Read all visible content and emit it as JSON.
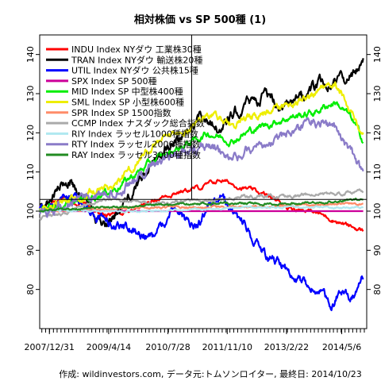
{
  "chart_data": {
    "type": "line",
    "title": "相対株価 vs SP 500種 (1)",
    "caption": "作成: wildinvestors.com, データ元:トムソンロイター, 最終日: 2014/10/23",
    "xlim": [
      "2007-10-15",
      "2014-11-20"
    ],
    "ylim": [
      70,
      145
    ],
    "x_ticks": [
      {
        "date": "2007-12-31",
        "label": "2007/12/31"
      },
      {
        "date": "2009-04-14",
        "label": "2009/4/14"
      },
      {
        "date": "2010-07-28",
        "label": "2010/7/28"
      },
      {
        "date": "2011-11-10",
        "label": "2011/11/10"
      },
      {
        "date": "2013-02-22",
        "label": "2013/2/22"
      },
      {
        "date": "2014-05-06",
        "label": "2014/5/6"
      }
    ],
    "y_ticks": [
      80,
      90,
      100,
      110,
      120,
      130,
      140
    ],
    "grid": false,
    "legend_position": "top-left",
    "reference_lines": {
      "horizontal": 103,
      "vertical": "2011-02-01"
    },
    "series": [
      {
        "name": "INDU Index NYダウ 工業株30種",
        "color": "#ff0000",
        "points": [
          [
            "2007-10-15",
            101
          ],
          [
            "2008-04-15",
            103
          ],
          [
            "2008-10-15",
            102
          ],
          [
            "2009-03-15",
            99
          ],
          [
            "2009-09-15",
            100
          ],
          [
            "2010-04-15",
            103
          ],
          [
            "2010-10-15",
            105
          ],
          [
            "2011-04-15",
            106
          ],
          [
            "2011-09-15",
            108
          ],
          [
            "2012-03-15",
            106
          ],
          [
            "2012-09-15",
            104
          ],
          [
            "2013-03-15",
            101
          ],
          [
            "2013-09-15",
            100
          ],
          [
            "2014-02-15",
            98
          ],
          [
            "2014-07-15",
            96
          ],
          [
            "2014-10-23",
            95
          ]
        ]
      },
      {
        "name": "TRAN Index NYダウ 輸送株20種",
        "color": "#000000",
        "points": [
          [
            "2007-10-15",
            101
          ],
          [
            "2008-06-15",
            108
          ],
          [
            "2008-12-15",
            100
          ],
          [
            "2009-03-15",
            96
          ],
          [
            "2009-10-15",
            104
          ],
          [
            "2010-04-15",
            115
          ],
          [
            "2010-10-15",
            118
          ],
          [
            "2011-04-15",
            125
          ],
          [
            "2011-09-15",
            121
          ],
          [
            "2012-03-15",
            127
          ],
          [
            "2012-09-15",
            130
          ],
          [
            "2013-03-15",
            126
          ],
          [
            "2013-10-15",
            132
          ],
          [
            "2014-04-15",
            133
          ],
          [
            "2014-08-15",
            135
          ],
          [
            "2014-10-23",
            140
          ]
        ]
      },
      {
        "name": "UTIL Index NYダウ 公共株15種",
        "color": "#0000ff",
        "points": [
          [
            "2007-10-15",
            100
          ],
          [
            "2008-04-15",
            104
          ],
          [
            "2008-10-15",
            101
          ],
          [
            "2009-03-15",
            97
          ],
          [
            "2009-10-15",
            95
          ],
          [
            "2010-04-15",
            93
          ],
          [
            "2010-09-15",
            102
          ],
          [
            "2011-02-15",
            95
          ],
          [
            "2011-09-15",
            104
          ],
          [
            "2012-03-15",
            97
          ],
          [
            "2012-08-15",
            90
          ],
          [
            "2013-01-15",
            86
          ],
          [
            "2013-06-15",
            82
          ],
          [
            "2013-11-15",
            79
          ],
          [
            "2014-02-15",
            76
          ],
          [
            "2014-05-15",
            80
          ],
          [
            "2014-08-15",
            78
          ],
          [
            "2014-10-23",
            83
          ]
        ]
      },
      {
        "name": "SPX Index SP 500種",
        "color": "#cc0099",
        "points": [
          [
            "2007-10-15",
            100
          ],
          [
            "2014-10-23",
            100
          ]
        ]
      },
      {
        "name": "MID Index SP 中型株400種",
        "color": "#00ee00",
        "points": [
          [
            "2007-10-15",
            100
          ],
          [
            "2008-10-15",
            103
          ],
          [
            "2009-06-15",
            106
          ],
          [
            "2010-04-15",
            113
          ],
          [
            "2010-10-15",
            116
          ],
          [
            "2011-06-15",
            120
          ],
          [
            "2011-12-15",
            118
          ],
          [
            "2012-06-15",
            121
          ],
          [
            "2013-03-15",
            124
          ],
          [
            "2013-09-15",
            125
          ],
          [
            "2014-03-15",
            128
          ],
          [
            "2014-07-15",
            124
          ],
          [
            "2014-10-23",
            118
          ]
        ]
      },
      {
        "name": "SML Index SP 小型株600種",
        "color": "#eeee00",
        "points": [
          [
            "2007-10-15",
            100
          ],
          [
            "2008-10-15",
            104
          ],
          [
            "2009-06-15",
            107
          ],
          [
            "2010-04-15",
            117
          ],
          [
            "2010-10-15",
            119
          ],
          [
            "2011-06-15",
            125
          ],
          [
            "2011-12-15",
            122
          ],
          [
            "2012-06-15",
            124
          ],
          [
            "2013-03-15",
            127
          ],
          [
            "2013-09-15",
            130
          ],
          [
            "2014-03-15",
            132
          ],
          [
            "2014-07-15",
            126
          ],
          [
            "2014-10-23",
            120
          ]
        ]
      },
      {
        "name": "SPR Index SP 1500指数",
        "color": "#ff8c69",
        "points": [
          [
            "2007-10-15",
            100
          ],
          [
            "2010-04-15",
            101
          ],
          [
            "2012-06-15",
            101
          ],
          [
            "2014-10-23",
            102
          ]
        ]
      },
      {
        "name": "CCMP Index ナスダック総合指数",
        "color": "#aaaaaa",
        "points": [
          [
            "2007-10-15",
            98
          ],
          [
            "2008-06-15",
            100
          ],
          [
            "2009-03-15",
            103
          ],
          [
            "2010-04-15",
            102
          ],
          [
            "2011-06-15",
            103
          ],
          [
            "2012-06-15",
            104
          ],
          [
            "2013-06-15",
            104
          ],
          [
            "2014-10-23",
            105
          ]
        ]
      },
      {
        "name": "RIY Index ラッセル1000種指数",
        "color": "#b0e8f0",
        "points": [
          [
            "2007-10-15",
            100
          ],
          [
            "2010-04-15",
            100
          ],
          [
            "2012-06-15",
            101
          ],
          [
            "2014-10-23",
            101
          ]
        ]
      },
      {
        "name": "RTY Index ラッセル2000種指数",
        "color": "#8a7bc8",
        "points": [
          [
            "2007-10-15",
            100
          ],
          [
            "2008-10-15",
            103
          ],
          [
            "2009-06-15",
            105
          ],
          [
            "2010-04-15",
            112
          ],
          [
            "2010-10-15",
            114
          ],
          [
            "2011-06-15",
            117
          ],
          [
            "2011-12-15",
            114
          ],
          [
            "2012-06-15",
            116
          ],
          [
            "2013-03-15",
            120
          ],
          [
            "2013-09-15",
            123
          ],
          [
            "2014-03-15",
            121
          ],
          [
            "2014-07-15",
            115
          ],
          [
            "2014-10-23",
            110
          ]
        ]
      },
      {
        "name": "RAY Index ラッセル3000種指数",
        "color": "#228b22",
        "points": [
          [
            "2007-10-15",
            100
          ],
          [
            "2009-06-15",
            101
          ],
          [
            "2011-06-15",
            102
          ],
          [
            "2013-06-15",
            102
          ],
          [
            "2014-10-23",
            103
          ]
        ]
      }
    ]
  }
}
